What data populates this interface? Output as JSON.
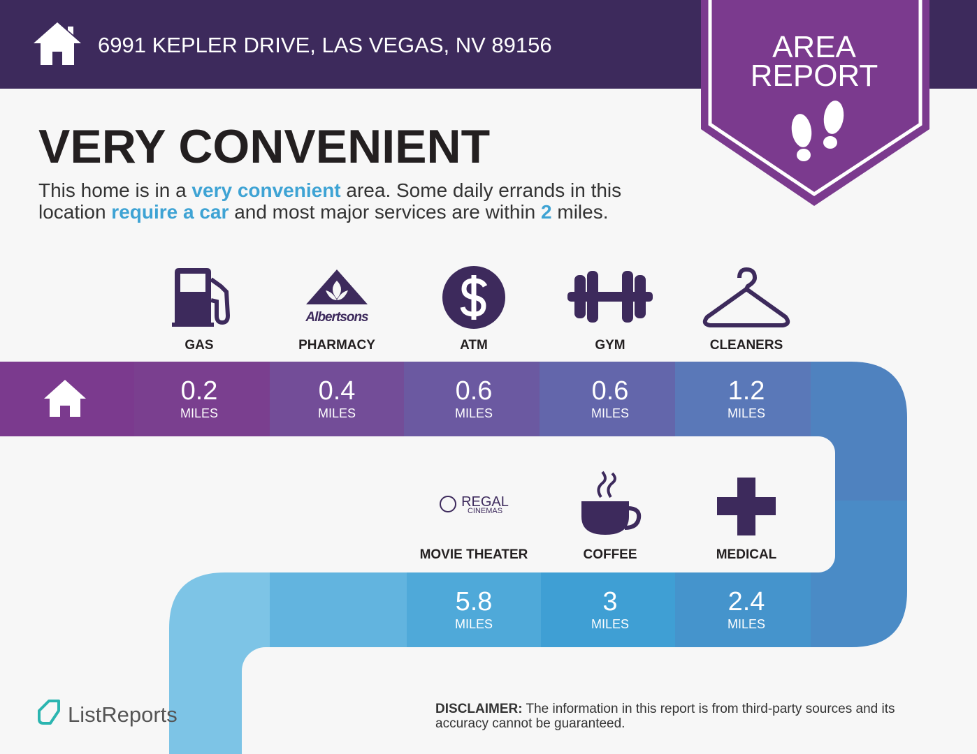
{
  "header": {
    "address": "6991 KEPLER DRIVE, LAS VEGAS, NV 89156"
  },
  "badge": {
    "line1": "AREA",
    "line2": "REPORT"
  },
  "summary": {
    "title": "VERY CONVENIENT",
    "line1": [
      "This home is in a",
      "very convenient",
      "area. Some daily errands in this"
    ],
    "line2": [
      "location",
      "require a car",
      "and most major services are within",
      "2",
      "miles."
    ]
  },
  "amenities": [
    {
      "label": "GAS",
      "distance": 0.2,
      "unit": "MILES"
    },
    {
      "label": "PHARMACY",
      "distance": 0.4,
      "unit": "MILES",
      "logo_text": "Albertsons"
    },
    {
      "label": "ATM",
      "distance": 0.6,
      "unit": "MILES"
    },
    {
      "label": "GYM",
      "distance": 0.6,
      "unit": "MILES"
    },
    {
      "label": "CLEANERS",
      "distance": 1.2,
      "unit": "MILES"
    },
    {
      "label": "MOVIE THEATER",
      "distance": 5.8,
      "unit": "MILES",
      "logo_text": [
        "REGAL",
        "CINEMAS"
      ]
    },
    {
      "label": "COFFEE",
      "distance": 3,
      "unit": "MILES"
    },
    {
      "label": "MEDICAL",
      "distance": 2.4,
      "unit": "MILES"
    }
  ],
  "footer": {
    "brand": "ListReports",
    "disclaimer_label": "DISCLAIMER:",
    "disclaimer_lines": [
      "The information in this report is from third-party sources and its",
      "accuracy cannot be guaranteed."
    ]
  }
}
